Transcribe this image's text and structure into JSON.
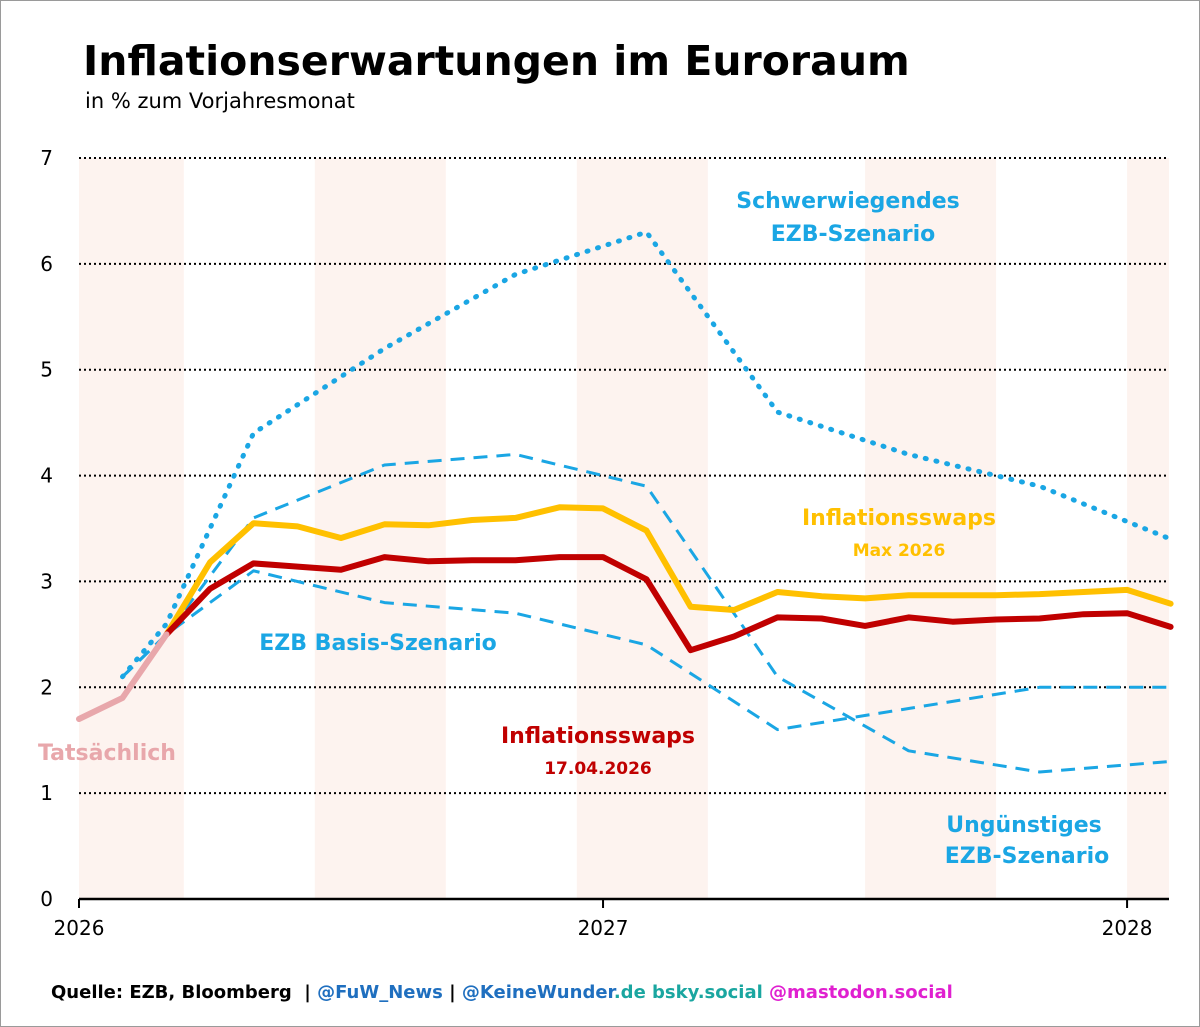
{
  "chart_data": {
    "type": "line",
    "title": "Inflationserwartungen im Euroraum",
    "subtitle": "in % zum Vorjahresmonat",
    "xlabel": "",
    "ylabel": "",
    "ylim": [
      0,
      7
    ],
    "xlim": [
      2026.0,
      2028.08
    ],
    "y_ticks": [
      "0",
      "1",
      "2",
      "3",
      "4",
      "5",
      "6",
      "7"
    ],
    "x_ticks": [
      {
        "value": 2026.0,
        "label": "2026"
      },
      {
        "value": 2027.0,
        "label": "2027"
      },
      {
        "value": 2028.0,
        "label": "2028"
      }
    ],
    "shaded_bands": [
      [
        2026.0,
        2026.2
      ],
      [
        2026.45,
        2026.7
      ],
      [
        2026.95,
        2027.2
      ],
      [
        2027.5,
        2027.75
      ],
      [
        2028.0,
        2028.08
      ]
    ],
    "series": [
      {
        "name": "Tatsächlich",
        "style": "solid",
        "x": [
          2026.0,
          2026.083,
          2026.167
        ],
        "y": [
          1.7,
          1.9,
          2.5
        ]
      },
      {
        "name": "Schwerwiegendes EZB-Szenario",
        "style": "dotted",
        "x": [
          2026.083,
          2026.167,
          2026.333,
          2026.583,
          2026.833,
          2027.083,
          2027.333,
          2027.583,
          2027.833,
          2028.083
        ],
        "y": [
          2.1,
          2.6,
          4.4,
          5.2,
          5.9,
          6.3,
          4.6,
          4.2,
          3.9,
          3.4
        ]
      },
      {
        "name": "EZB Basis-Szenario",
        "style": "dashed",
        "x": [
          2026.083,
          2026.167,
          2026.333,
          2026.583,
          2026.833,
          2027.083,
          2027.333,
          2027.583,
          2027.833,
          2028.083
        ],
        "y": [
          2.1,
          2.5,
          3.1,
          2.8,
          2.7,
          2.4,
          1.6,
          1.8,
          2.0,
          2.0
        ]
      },
      {
        "name": "Ungünstiges EZB-Szenario",
        "style": "dashed",
        "x": [
          2026.083,
          2026.167,
          2026.333,
          2026.583,
          2026.833,
          2027.083,
          2027.333,
          2027.583,
          2027.833,
          2028.083
        ],
        "y": [
          2.1,
          2.5,
          3.6,
          4.1,
          4.2,
          3.9,
          2.1,
          1.4,
          1.2,
          1.3
        ]
      },
      {
        "name": "Inflationsswaps Max 2026",
        "style": "solid",
        "x": [
          2026.167,
          2026.25,
          2026.333,
          2026.417,
          2026.5,
          2026.583,
          2026.667,
          2026.75,
          2026.833,
          2026.917,
          2027.0,
          2027.083,
          2027.167,
          2027.25,
          2027.333,
          2027.417,
          2027.5,
          2027.583,
          2027.667,
          2027.75,
          2027.833,
          2027.917,
          2028.0,
          2028.083
        ],
        "y": [
          2.5,
          3.18,
          3.55,
          3.52,
          3.41,
          3.54,
          3.53,
          3.58,
          3.6,
          3.7,
          3.69,
          3.48,
          2.76,
          2.73,
          2.9,
          2.86,
          2.84,
          2.87,
          2.87,
          2.87,
          2.88,
          2.9,
          2.92,
          2.79
        ]
      },
      {
        "name": "Inflationsswaps 17.04.2026",
        "style": "solid",
        "x": [
          2026.167,
          2026.25,
          2026.333,
          2026.417,
          2026.5,
          2026.583,
          2026.667,
          2026.75,
          2026.833,
          2026.917,
          2027.0,
          2027.083,
          2027.167,
          2027.25,
          2027.333,
          2027.417,
          2027.5,
          2027.583,
          2027.667,
          2027.75,
          2027.833,
          2027.917,
          2028.0,
          2028.083
        ],
        "y": [
          2.5,
          2.93,
          3.17,
          3.14,
          3.11,
          3.23,
          3.19,
          3.2,
          3.2,
          3.23,
          3.23,
          3.02,
          2.35,
          2.48,
          2.66,
          2.65,
          2.58,
          2.66,
          2.62,
          2.64,
          2.65,
          2.69,
          2.7,
          2.57
        ]
      }
    ],
    "annotations": {
      "actual": "Tatsächlich",
      "severe_line1": "Schwerwiegendes",
      "severe_line2": "EZB-Szenario",
      "base": "EZB Basis-Szenario",
      "adverse_line1": "Ungünstiges",
      "adverse_line2": "EZB-Szenario",
      "swaps_max_line1": "Inflationsswaps",
      "swaps_max_line2": "Max 2026",
      "swaps_current_line1": "Inflationsswaps",
      "swaps_current_line2": "17.04.2026"
    }
  },
  "colors": {
    "actual": "#e8a7ab",
    "ecb": "#1aa6e4",
    "swaps_max": "#ffc000",
    "swaps_current": "#c00000",
    "band": "#fdf3ef",
    "grid": "#000000",
    "footer_black": "#000000",
    "footer_blue": "#1f6fbf",
    "footer_teal": "#1aa6a0",
    "footer_magenta": "#e020d0"
  },
  "footer": {
    "source": "Quelle: EZB, Bloomberg",
    "sep1": "  | ",
    "handle1": "@FuW_News",
    "sep2": " | ",
    "handle2_main": "@KeineWunder",
    "handle2_tld": ".de",
    "bsky": " bsky.social",
    "mastodon": " @mastodon.social"
  }
}
